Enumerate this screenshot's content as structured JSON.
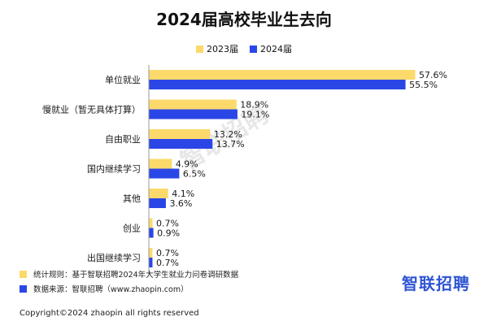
{
  "chart_data": {
    "type": "bar",
    "orientation": "horizontal",
    "title": "2024届高校毕业生去向",
    "categories": [
      "单位就业",
      "慢就业（暂无具体打算）",
      "自由职业",
      "国内继续学习",
      "其他",
      "创业",
      "出国继续学习"
    ],
    "series": [
      {
        "name": "2023届",
        "color": "#fcd96b",
        "values": [
          57.6,
          18.9,
          13.2,
          4.9,
          4.1,
          0.7,
          0.7
        ],
        "labels": [
          "57.6%",
          "18.9%",
          "13.2%",
          "4.9%",
          "4.1%",
          "0.7%",
          "0.7%"
        ]
      },
      {
        "name": "2024届",
        "color": "#2b46e6",
        "values": [
          55.5,
          19.1,
          13.7,
          6.5,
          3.6,
          0.9,
          0.7
        ],
        "labels": [
          "55.5%",
          "19.1%",
          "13.7%",
          "6.5%",
          "3.6%",
          "0.9%",
          "0.7%"
        ]
      }
    ],
    "value_unit": "%",
    "legend_position": "top-center",
    "grid": false
  },
  "notes": [
    {
      "text": "统计规则：基于智联招聘2024年大学生就业力问卷调研数据",
      "color": "#fcd96b"
    },
    {
      "text": "数据来源：智联招聘（www.zhaopin.com）",
      "color": "#2b46e6"
    }
  ],
  "brand": {
    "logo_text": "智联招聘",
    "watermark": "智联招聘",
    "color": "#2f55d4"
  },
  "copyright": "Copyright©2024 zhaopin all rights reserved"
}
